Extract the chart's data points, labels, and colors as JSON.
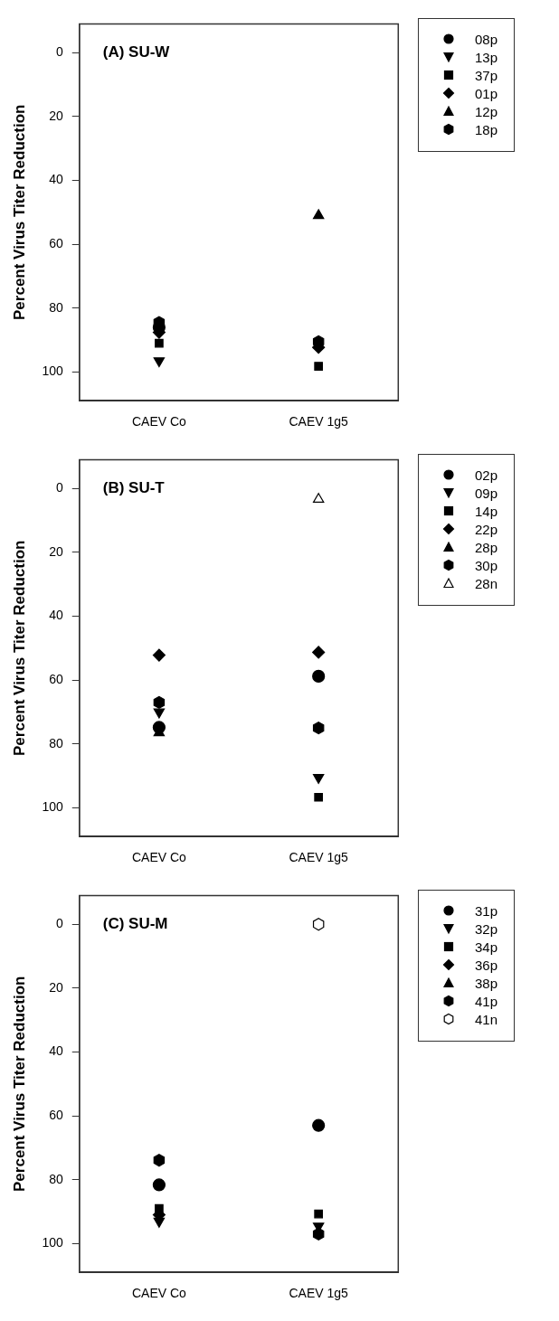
{
  "chart_data": [
    {
      "type": "scatter",
      "title": "(A) SU-W",
      "ylabel": "Percent Virus Titer Reduction",
      "categories": [
        "CAEV Co",
        "CAEV 1g5"
      ],
      "ylim": [
        109,
        -9
      ],
      "yticks": [
        0,
        20,
        40,
        60,
        80,
        100
      ],
      "grid": false,
      "legend": "right",
      "series": [
        {
          "name": "08p",
          "color": "#000000",
          "marker": "circle",
          "values": [
            86,
            null
          ]
        },
        {
          "name": "13p",
          "color": "#000000",
          "marker": "triangle-down",
          "values": [
            96.5,
            null
          ]
        },
        {
          "name": "37p",
          "color": "#000000",
          "marker": "square",
          "values": [
            91,
            98.2
          ]
        },
        {
          "name": "01p",
          "color": "#000000",
          "marker": "diamond",
          "values": [
            87.6,
            92.3
          ]
        },
        {
          "name": "12p",
          "color": "#000000",
          "marker": "triangle",
          "values": [
            null,
            51
          ]
        },
        {
          "name": "18p",
          "color": "#000000",
          "values": [
            84.5,
            90.5
          ]
        }
      ]
    },
    {
      "type": "scatter",
      "title": "(B) SU-T",
      "ylabel": "Percent Virus Titer Reduction",
      "categories": [
        "CAEV Co",
        "CAEV 1g5"
      ],
      "ylim": [
        109,
        -9
      ],
      "yticks": [
        0,
        20,
        40,
        60,
        80,
        100
      ],
      "grid": false,
      "legend": "right",
      "series": [
        {
          "name": "02p",
          "color": "#000000",
          "marker": "circle",
          "values": [
            74.8,
            58.8
          ]
        },
        {
          "name": "09p",
          "color": "#000000",
          "marker": "triangle-down",
          "values": [
            70,
            90.5
          ]
        },
        {
          "name": "14p",
          "color": "#000000",
          "marker": "square",
          "values": [
            null,
            96.7
          ]
        },
        {
          "name": "22p",
          "color": "#000000",
          "marker": "diamond",
          "values": [
            52.2,
            51.3
          ]
        },
        {
          "name": "28p",
          "color": "#000000",
          "marker": "triangle",
          "values": [
            76.5,
            null
          ]
        },
        {
          "name": "30p",
          "color": "#000000",
          "values": [
            67,
            75
          ]
        },
        {
          "name": "28n",
          "color": "#ffffff",
          "marker": "triangle",
          "values": [
            null,
            3.4
          ]
        }
      ]
    },
    {
      "type": "scatter",
      "title": "(C) SU-M",
      "ylabel": "Percent Virus Titer Reduction",
      "categories": [
        "CAEV Co",
        "CAEV 1g5"
      ],
      "ylim": [
        109,
        -9
      ],
      "yticks": [
        0,
        20,
        40,
        60,
        80,
        100
      ],
      "grid": false,
      "legend": "right",
      "series": [
        {
          "name": "31p",
          "color": "#000000",
          "marker": "circle",
          "values": [
            81.6,
            63
          ]
        },
        {
          "name": "32p",
          "color": "#000000",
          "marker": "triangle-down",
          "values": [
            93,
            94.5
          ]
        },
        {
          "name": "34p",
          "color": "#000000",
          "marker": "square",
          "values": [
            89,
            90.7
          ]
        },
        {
          "name": "36p",
          "color": "#000000",
          "marker": "diamond",
          "values": [
            91,
            null
          ]
        },
        {
          "name": "38p",
          "color": "#000000",
          "marker": "triangle",
          "values": [
            null,
            null
          ]
        },
        {
          "name": "41p",
          "color": "#000000",
          "values": [
            73.9,
            97
          ]
        },
        {
          "name": "41n",
          "color": "#ffffff",
          "values": [
            null,
            0
          ]
        }
      ]
    }
  ]
}
